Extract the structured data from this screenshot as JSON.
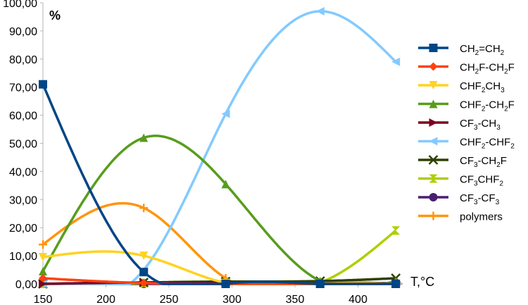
{
  "chart_data": {
    "type": "line",
    "smooth": true,
    "xlabel": "T,°C",
    "ylabel": "%",
    "xlim": [
      150,
      430
    ],
    "ylim": [
      0,
      100
    ],
    "x_ticks": [
      150,
      200,
      250,
      300,
      350,
      400
    ],
    "x_tick_labels": [
      "150",
      "200",
      "250",
      "300",
      "350",
      "400"
    ],
    "y_ticks": [
      0,
      10,
      20,
      30,
      40,
      50,
      60,
      70,
      80,
      90,
      100
    ],
    "y_tick_labels": [
      "0,00",
      "10,00",
      "20,00",
      "30,00",
      "40,00",
      "50,00",
      "60,00",
      "70,00",
      "80,00",
      "90,00",
      "100,00"
    ],
    "grid": false,
    "legend_position": "right",
    "x": [
      150,
      230,
      295,
      370,
      430
    ],
    "series": [
      {
        "name": "CH2=CH2",
        "label_parts": [
          [
            "CH",
            false
          ],
          [
            "2",
            true
          ],
          [
            "=CH",
            false
          ],
          [
            "2",
            true
          ]
        ],
        "color": "#004586",
        "marker": "square",
        "values": [
          71,
          4.2,
          0,
          0,
          0
        ]
      },
      {
        "name": "CH2F-CH2F",
        "label_parts": [
          [
            "CH",
            false
          ],
          [
            "2",
            true
          ],
          [
            "F-CH",
            false
          ],
          [
            "2",
            true
          ],
          [
            "F",
            false
          ]
        ],
        "color": "#ff420e",
        "marker": "diamond",
        "values": [
          2,
          0.3,
          0,
          0,
          0
        ]
      },
      {
        "name": "CHF2CH3",
        "label_parts": [
          [
            "CHF",
            false
          ],
          [
            "2",
            true
          ],
          [
            "CH",
            false
          ],
          [
            "3",
            true
          ]
        ],
        "color": "#ffd320",
        "marker": "triangle-down",
        "values": [
          9.5,
          10,
          0.3,
          0,
          0
        ]
      },
      {
        "name": "CHF2-CH2F",
        "label_parts": [
          [
            "CHF",
            false
          ],
          [
            "2",
            true
          ],
          [
            "-CH",
            false
          ],
          [
            "2",
            true
          ],
          [
            "F",
            false
          ]
        ],
        "color": "#579d1c",
        "marker": "triangle-up",
        "values": [
          4.5,
          52,
          35.5,
          1,
          1
        ]
      },
      {
        "name": "CF3-CH3",
        "label_parts": [
          [
            "CF",
            false
          ],
          [
            "3",
            true
          ],
          [
            "-CH",
            false
          ],
          [
            "3",
            true
          ]
        ],
        "color": "#7e0021",
        "marker": "triangle-right",
        "values": [
          0,
          0.5,
          0.3,
          0,
          0
        ]
      },
      {
        "name": "CHF2-CHF2",
        "label_parts": [
          [
            "CHF",
            false
          ],
          [
            "2",
            true
          ],
          [
            "-CHF",
            false
          ],
          [
            "2",
            true
          ]
        ],
        "color": "#83caff",
        "marker": "triangle-left",
        "values": [
          0,
          5,
          60.5,
          97,
          79
        ]
      },
      {
        "name": "CF3-CH2F",
        "label_parts": [
          [
            "CF",
            false
          ],
          [
            "3",
            true
          ],
          [
            "-CH",
            false
          ],
          [
            "2",
            true
          ],
          [
            "F",
            false
          ]
        ],
        "color": "#314004",
        "marker": "x",
        "values": [
          0,
          0.5,
          0.8,
          1,
          2
        ]
      },
      {
        "name": "CF3CHF2",
        "label_parts": [
          [
            "CF",
            false
          ],
          [
            "3",
            true
          ],
          [
            "CHF",
            false
          ],
          [
            "2",
            true
          ]
        ],
        "color": "#aecf00",
        "marker": "hourglass",
        "values": [
          0,
          0.3,
          0.3,
          0.5,
          19
        ]
      },
      {
        "name": "CF3-CF3",
        "label_parts": [
          [
            "CF",
            false
          ],
          [
            "3",
            true
          ],
          [
            "-CF",
            false
          ],
          [
            "3",
            true
          ]
        ],
        "color": "#4b1f6f",
        "marker": "circle",
        "values": [
          0,
          0,
          0,
          0,
          0.3
        ]
      },
      {
        "name": "polymers",
        "label_parts": [
          [
            "polymers",
            false
          ]
        ],
        "color": "#ff950e",
        "marker": "plus",
        "values": [
          14,
          27,
          2,
          0,
          0
        ]
      }
    ]
  }
}
